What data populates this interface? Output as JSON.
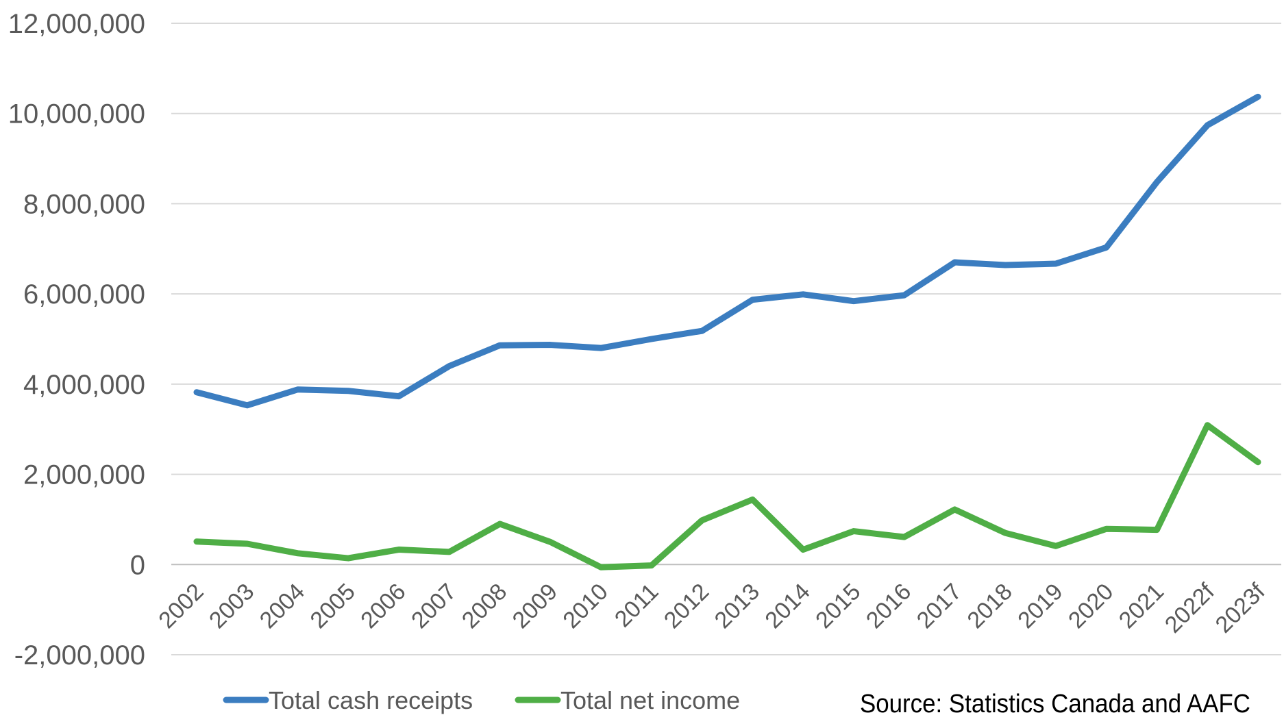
{
  "chart_data": {
    "type": "line",
    "categories": [
      "2002",
      "2003",
      "2004",
      "2005",
      "2006",
      "2007",
      "2008",
      "2009",
      "2010",
      "2011",
      "2012",
      "2013",
      "2014",
      "2015",
      "2016",
      "2017",
      "2018",
      "2019",
      "2020",
      "2021",
      "2022f",
      "2023f"
    ],
    "series": [
      {
        "name": "Total cash receipts",
        "color": "#3b7dc0",
        "values": [
          3820000,
          3530000,
          3880000,
          3850000,
          3730000,
          4400000,
          4860000,
          4870000,
          4800000,
          5000000,
          5180000,
          5870000,
          5990000,
          5840000,
          5970000,
          6700000,
          6640000,
          6670000,
          7030000,
          8480000,
          9740000,
          10370000
        ]
      },
      {
        "name": "Total net income",
        "color": "#4fae46",
        "values": [
          510000,
          460000,
          250000,
          140000,
          330000,
          280000,
          900000,
          500000,
          -60000,
          -20000,
          980000,
          1440000,
          330000,
          740000,
          610000,
          1220000,
          700000,
          410000,
          790000,
          770000,
          3090000,
          2270000
        ]
      }
    ],
    "yticks": [
      "-2,000,000",
      "0",
      "2,000,000",
      "4,000,000",
      "6,000,000",
      "8,000,000",
      "10,000,000",
      "12,000,000"
    ],
    "ylim": [
      -2000000,
      12000000
    ],
    "grid": true,
    "legend_position": "bottom",
    "annotation": "Source: Statistics Canada and AAFC"
  }
}
